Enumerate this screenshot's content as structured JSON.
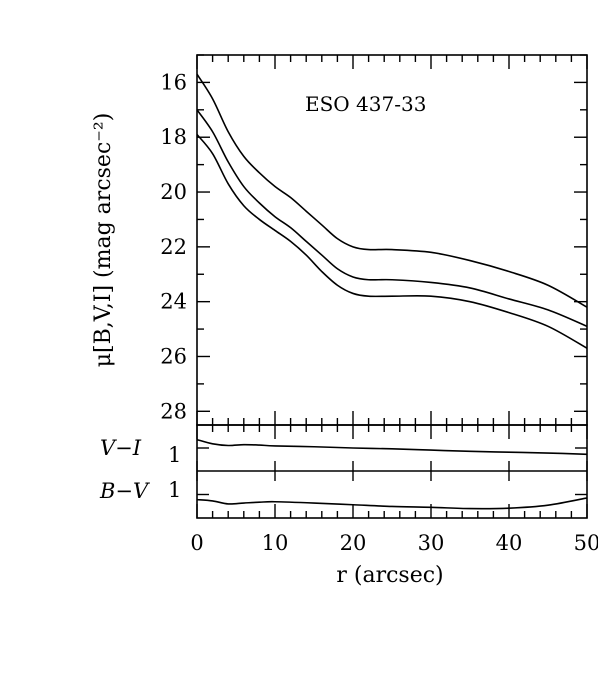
{
  "chart_data": [
    {
      "type": "line",
      "panel": "surface-brightness",
      "annotation": "ESO 437-33",
      "xlabel": "r (arcsec)",
      "ylabel": "μ[B,V,I] (mag arcsec⁻²)",
      "xlim": [
        0,
        50
      ],
      "ylim": [
        28.5,
        15
      ],
      "y_inverted": true,
      "xticks": [
        0,
        10,
        20,
        30,
        40,
        50
      ],
      "yticks": [
        16,
        18,
        20,
        22,
        24,
        26,
        28
      ],
      "grid": false,
      "series": [
        {
          "x": [
            0,
            2,
            4,
            6,
            8,
            10,
            12,
            14,
            16,
            18,
            20,
            22,
            25,
            30,
            35,
            40,
            45,
            50
          ],
          "y": [
            15.7,
            16.6,
            17.8,
            18.7,
            19.3,
            19.8,
            20.2,
            20.7,
            21.2,
            21.7,
            22.0,
            22.1,
            22.1,
            22.2,
            22.5,
            22.9,
            23.4,
            24.2
          ]
        },
        {
          "x": [
            0,
            2,
            4,
            6,
            8,
            10,
            12,
            14,
            16,
            18,
            20,
            22,
            25,
            30,
            35,
            40,
            45,
            50
          ],
          "y": [
            17.0,
            17.8,
            18.9,
            19.8,
            20.4,
            20.9,
            21.3,
            21.8,
            22.3,
            22.8,
            23.1,
            23.2,
            23.2,
            23.3,
            23.5,
            23.9,
            24.3,
            24.9
          ]
        },
        {
          "x": [
            0,
            2,
            4,
            6,
            8,
            10,
            12,
            14,
            16,
            18,
            20,
            22,
            25,
            30,
            35,
            40,
            45,
            50
          ],
          "y": [
            17.9,
            18.6,
            19.7,
            20.5,
            21.0,
            21.4,
            21.8,
            22.3,
            22.9,
            23.4,
            23.7,
            23.8,
            23.8,
            23.8,
            24.0,
            24.4,
            24.9,
            25.7
          ]
        }
      ]
    },
    {
      "type": "line",
      "panel": "color-index",
      "xlabel": "r (arcsec)",
      "xlim": [
        0,
        50
      ],
      "xticks": [
        0,
        10,
        20,
        30,
        40,
        50
      ],
      "grid": false,
      "subpanels": [
        {
          "label": "V−I",
          "ytick_label": "1",
          "ylim": [
            1.55,
            0.45
          ],
          "series": [
            {
              "x": [
                0,
                2,
                4,
                6,
                8,
                10,
                15,
                20,
                25,
                30,
                35,
                40,
                45,
                50
              ],
              "y": [
                0.8,
                0.9,
                0.94,
                0.92,
                0.93,
                0.95,
                0.97,
                1.0,
                1.02,
                1.05,
                1.08,
                1.1,
                1.12,
                1.15
              ]
            }
          ]
        },
        {
          "label": "B−V",
          "ytick_label": "1",
          "ylim": [
            1.55,
            0.45
          ],
          "series": [
            {
              "x": [
                0,
                2,
                4,
                6,
                8,
                10,
                15,
                20,
                25,
                30,
                35,
                40,
                45,
                50
              ],
              "y": [
                1.12,
                1.15,
                1.22,
                1.2,
                1.18,
                1.17,
                1.2,
                1.24,
                1.28,
                1.3,
                1.33,
                1.32,
                1.25,
                1.08
              ]
            }
          ]
        }
      ]
    }
  ],
  "text": {
    "annotation": "ESO 437-33",
    "ylabel": "μ[B,V,I] (mag arcsec⁻²)",
    "xlabel": "r (arcsec)",
    "label_vi": "V−I",
    "label_bv": "B−V",
    "color_tick": "1"
  }
}
